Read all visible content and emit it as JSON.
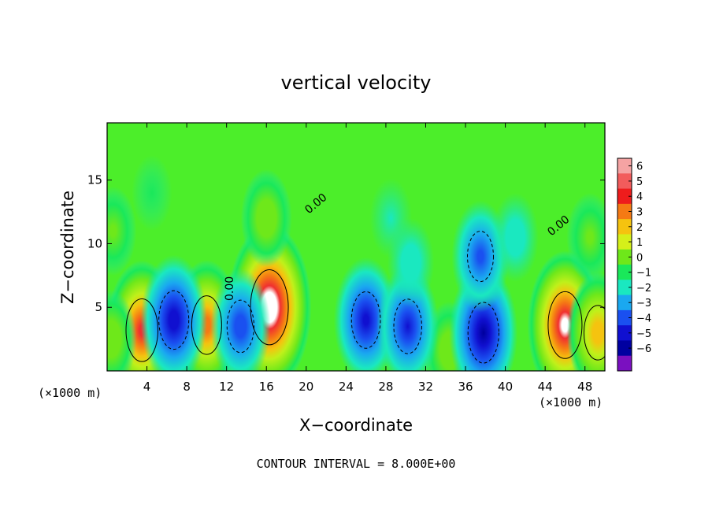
{
  "chart_data": {
    "type": "heatmap",
    "title": "vertical velocity",
    "xlabel": "X−coordinate",
    "ylabel": "Z−coordinate",
    "x_unit_label": "(×1000 m)",
    "z_unit_label": "(×1000 m)",
    "footer": "CONTOUR INTERVAL = 8.000E+00",
    "xlim": [
      0,
      50
    ],
    "ylim": [
      0,
      19.5
    ],
    "xticks": [
      "4",
      "8",
      "12",
      "16",
      "20",
      "24",
      "28",
      "32",
      "36",
      "40",
      "44",
      "48"
    ],
    "xtick_values": [
      4,
      8,
      12,
      16,
      20,
      24,
      28,
      32,
      36,
      40,
      44,
      48
    ],
    "yticks": [
      "5",
      "10",
      "15"
    ],
    "ytick_values": [
      5,
      10,
      15
    ],
    "contour_labels": [
      "0.00",
      "0.00",
      "0.00"
    ],
    "colorbar": {
      "labels": [
        "6",
        "5",
        "4",
        "3",
        "2",
        "1",
        "0",
        "−1",
        "−2",
        "−3",
        "−4",
        "−5",
        "−6"
      ],
      "values": [
        6,
        5,
        4,
        3,
        2,
        1,
        0,
        -1,
        -2,
        -3,
        -4,
        -5,
        -6
      ],
      "colors": [
        "#f5a3a3",
        "#f25c5c",
        "#ee1c1c",
        "#f57a14",
        "#f5c30f",
        "#d5f01a",
        "#6ee81a",
        "#1ae85a",
        "#1ae8c0",
        "#1aa8f0",
        "#1a50f0",
        "#1010d0",
        "#0000a0",
        "#7a10c0"
      ]
    },
    "background": 0.3,
    "features": [
      {
        "x": 3.5,
        "z": 3.2,
        "w": 0.8
      },
      {
        "x": 10.0,
        "z": 3.6,
        "w": 0.7
      },
      {
        "x": 16.3,
        "z": 5.0,
        "w": 1.1
      },
      {
        "x": 46.0,
        "z": 3.6,
        "w": 0.9
      },
      {
        "x": 49.3,
        "z": 3.0,
        "w": 0.6
      },
      {
        "x": 0.4,
        "z": 2.5,
        "w": 0.35
      },
      {
        "x": 34.4,
        "z": 1.6,
        "w": 0.35
      },
      {
        "x": 6.7,
        "z": 4.0,
        "w": -0.7
      },
      {
        "x": 13.4,
        "z": 3.5,
        "w": -0.55
      },
      {
        "x": 26.0,
        "z": 4.0,
        "w": -0.65
      },
      {
        "x": 30.2,
        "z": 3.5,
        "w": -0.6
      },
      {
        "x": 37.8,
        "z": 3.0,
        "w": -0.75
      },
      {
        "x": 37.5,
        "z": 9.0,
        "w": -0.5
      },
      {
        "x": 41.0,
        "z": 10.5,
        "w": -0.25
      },
      {
        "x": 30.5,
        "z": 8.5,
        "w": -0.25
      },
      {
        "x": 16.0,
        "z": 12.0,
        "w": 0.35
      },
      {
        "x": 48.5,
        "z": 10.5,
        "w": 0.25
      },
      {
        "x": 0.6,
        "z": 11.0,
        "w": 0.25
      },
      {
        "x": 4.5,
        "z": 14.0,
        "w": 0.1
      },
      {
        "x": 28.5,
        "z": 12.0,
        "w": -0.15
      }
    ]
  }
}
